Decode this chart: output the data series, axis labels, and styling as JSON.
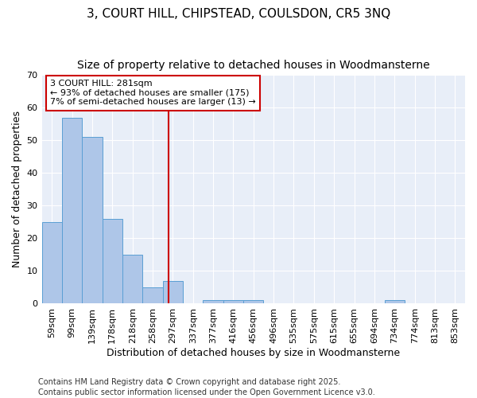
{
  "title1": "3, COURT HILL, CHIPSTEAD, COULSDON, CR5 3NQ",
  "title2": "Size of property relative to detached houses in Woodmansterne",
  "xlabel": "Distribution of detached houses by size in Woodmansterne",
  "ylabel": "Number of detached properties",
  "categories": [
    "59sqm",
    "99sqm",
    "139sqm",
    "178sqm",
    "218sqm",
    "258sqm",
    "297sqm",
    "337sqm",
    "377sqm",
    "416sqm",
    "456sqm",
    "496sqm",
    "535sqm",
    "575sqm",
    "615sqm",
    "655sqm",
    "694sqm",
    "734sqm",
    "774sqm",
    "813sqm",
    "853sqm"
  ],
  "values": [
    25,
    57,
    51,
    26,
    15,
    5,
    7,
    0,
    1,
    1,
    1,
    0,
    0,
    0,
    0,
    0,
    0,
    1,
    0,
    0,
    0
  ],
  "bar_color": "#aec6e8",
  "bar_edge_color": "#5a9fd4",
  "bar_width": 1.0,
  "vline_x": 5.78,
  "vline_color": "#cc0000",
  "annotation_text": "3 COURT HILL: 281sqm\n← 93% of detached houses are smaller (175)\n7% of semi-detached houses are larger (13) →",
  "annotation_box_color": "#cc0000",
  "ylim": [
    0,
    70
  ],
  "yticks": [
    0,
    10,
    20,
    30,
    40,
    50,
    60,
    70
  ],
  "background_color": "#e8eef8",
  "footer_line1": "Contains HM Land Registry data © Crown copyright and database right 2025.",
  "footer_line2": "Contains public sector information licensed under the Open Government Licence v3.0.",
  "title_fontsize": 11,
  "subtitle_fontsize": 10,
  "axis_fontsize": 9,
  "tick_fontsize": 8,
  "annotation_fontsize": 8
}
